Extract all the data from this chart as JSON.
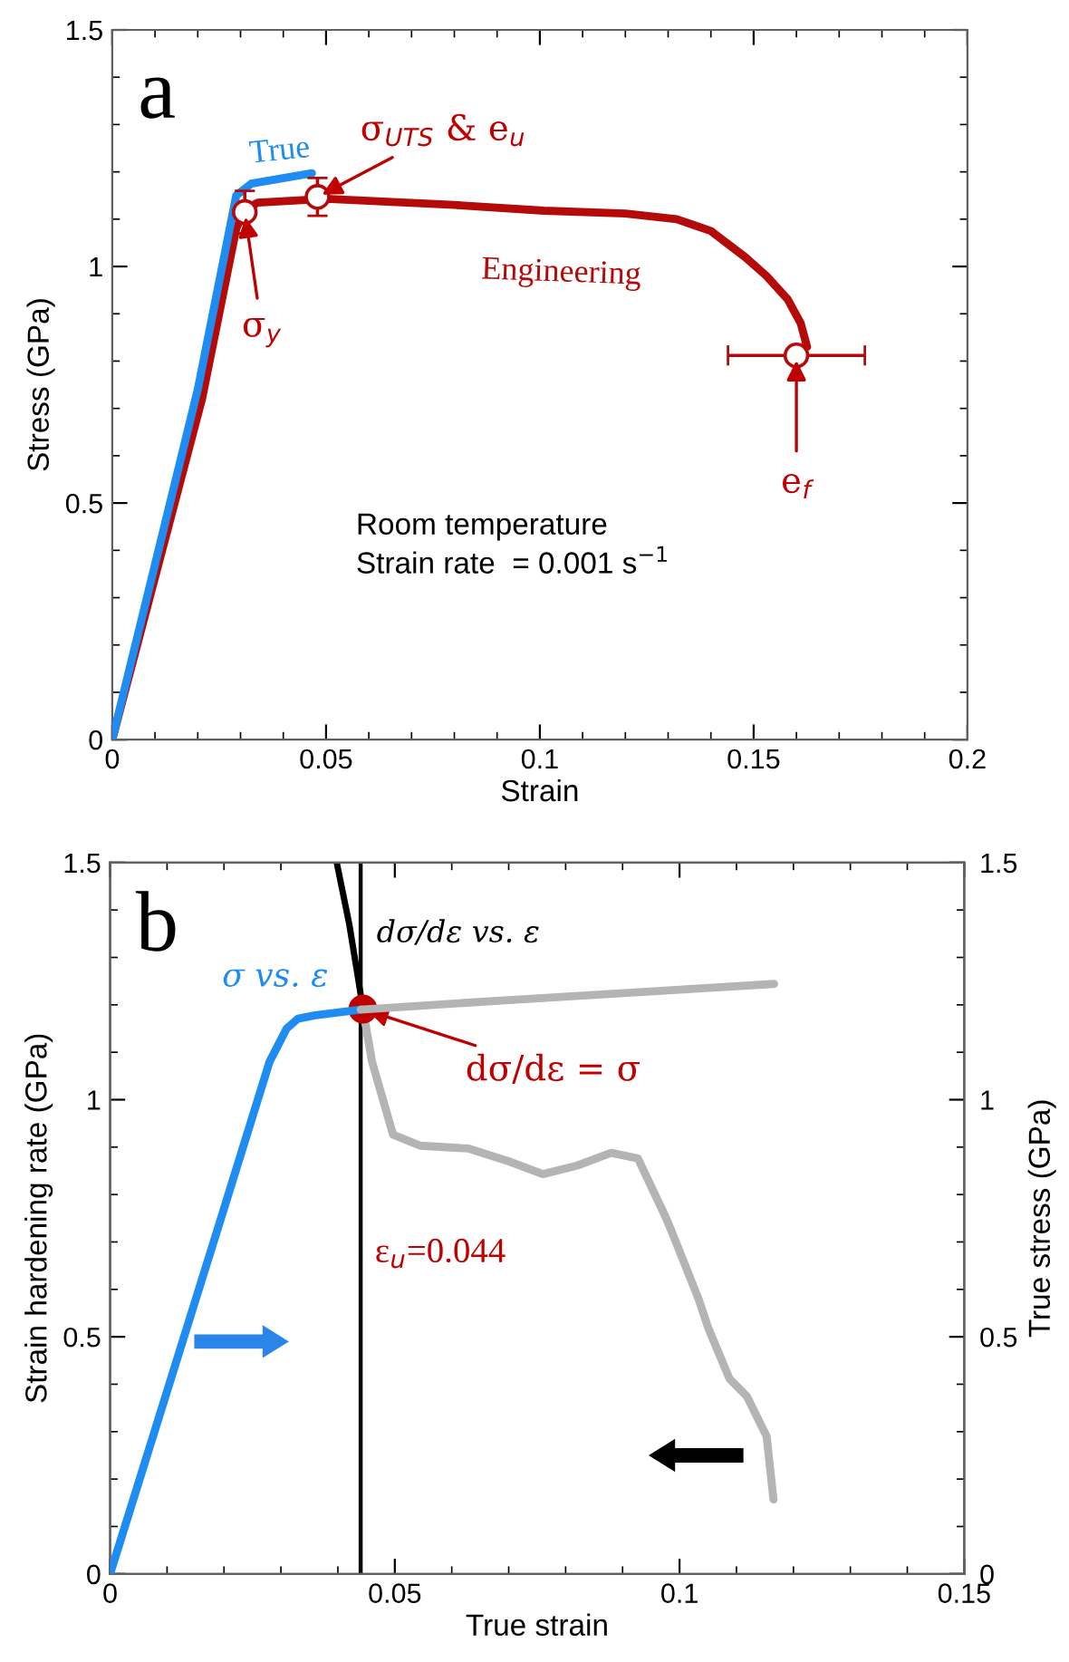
{
  "chart_data": [
    {
      "type": "line",
      "title": "a",
      "xlabel": "Strain",
      "ylabel": "Stress (GPa)",
      "xlim": [
        0,
        0.2
      ],
      "xticks": [
        0,
        0.05,
        0.1,
        0.15,
        0.2
      ],
      "ylim": [
        0,
        1.5
      ],
      "yticks": [
        0,
        0.5,
        1,
        1.5
      ],
      "grid": false,
      "line_style": "solid",
      "series": [
        {
          "name": "Engineering",
          "color": "#b40a0a",
          "x": [
            0,
            0.021,
            0.029,
            0.031,
            0.034,
            0.05,
            0.08,
            0.101,
            0.12,
            0.132,
            0.14,
            0.148,
            0.153,
            0.158,
            0.161,
            0.1625
          ],
          "values": [
            0,
            0.72,
            1.08,
            1.12,
            1.135,
            1.143,
            1.13,
            1.118,
            1.112,
            1.1,
            1.075,
            1.02,
            0.98,
            0.93,
            0.88,
            0.83
          ]
        },
        {
          "name": "True",
          "color": "#1e8cf0",
          "x": [
            0,
            0.02,
            0.029,
            0.0325,
            0.0467
          ],
          "values": [
            0,
            0.74,
            1.15,
            1.175,
            1.197
          ]
        },
        {
          "type": "scatter",
          "color": "#b40a0a",
          "x": [
            0.031,
            0.048,
            0.16
          ],
          "values": [
            1.115,
            1.147,
            0.812
          ],
          "errors": [
            0.045,
            0.04,
            null
          ],
          "xerrors": [
            null,
            null,
            0.016
          ]
        }
      ],
      "annotations": [
        {
          "text": "σ$_{UTS}$ & e$_{u}$",
          "x": 0.048,
          "y": 1.147
        },
        {
          "text": "σ$_{y}$",
          "x": 0.031,
          "y": 1.115
        },
        {
          "text": "e$_{f}$",
          "x": 0.16,
          "y": 0.812
        },
        "Room temperature\nStrain rate  = 0.001 s$^{−1}$"
      ]
    },
    {
      "type": "line",
      "title": "b",
      "xlabel": "True strain",
      "ylabel": "Strain hardening rate (GPa)",
      "y2label": "True stress (GPa)",
      "xlim": [
        0,
        0.15
      ],
      "xticks": [
        0,
        0.05,
        0.1,
        0.15
      ],
      "ylim": [
        0,
        1.5
      ],
      "yticks": [
        0,
        0.5,
        1,
        1.5
      ],
      "y2lim": [
        0,
        1.5
      ],
      "y2ticks": [
        0,
        0.5,
        1,
        1.5
      ],
      "grid": false,
      "line_style": "solid",
      "series": [
        {
          "name": "σ vs. ε",
          "color": "#1e8cf0",
          "axis": "y2",
          "x": [
            0,
            0.0187,
            0.028,
            0.031,
            0.033,
            0.036,
            0.044
          ],
          "values": [
            0,
            0.72,
            1.08,
            1.15,
            1.171,
            1.178,
            1.19
          ]
        },
        {
          "color": "#b4b4b4",
          "axis": "y2",
          "x": [
            0.044,
            0.07,
            0.1,
            0.1166
          ],
          "values": [
            1.19,
            1.21,
            1.232,
            1.244
          ]
        },
        {
          "name": "dσ/dε vs. ε",
          "color": "#000000",
          "x": [
            0.0398,
            0.042,
            0.0435,
            0.0444
          ],
          "values": [
            1.5,
            1.37,
            1.26,
            1.191
          ]
        },
        {
          "color": "#b4b4b4",
          "x": [
            0.0444,
            0.046,
            0.0497,
            0.0545,
            0.063,
            0.07,
            0.076,
            0.082,
            0.088,
            0.0927,
            0.0975,
            0.0987,
            0.1034,
            0.105,
            0.1088,
            0.1118,
            0.1153,
            0.1165
          ],
          "values": [
            1.191,
            1.08,
            0.926,
            0.903,
            0.897,
            0.87,
            0.843,
            0.861,
            0.888,
            0.876,
            0.754,
            0.72,
            0.578,
            0.52,
            0.411,
            0.375,
            0.29,
            0.157
          ]
        },
        {
          "type": "scatter",
          "color": "#c00000",
          "x": [
            0.0444
          ],
          "values": [
            1.191
          ]
        }
      ],
      "ref_lines": [
        {
          "axis": "x",
          "value": 0.044,
          "label": "ε$_{u}$=0.044",
          "color": "#000000"
        }
      ],
      "annotations": [
        {
          "text": "dσ/dε = σ",
          "x": 0.0444,
          "y": 1.191
        }
      ]
    }
  ]
}
